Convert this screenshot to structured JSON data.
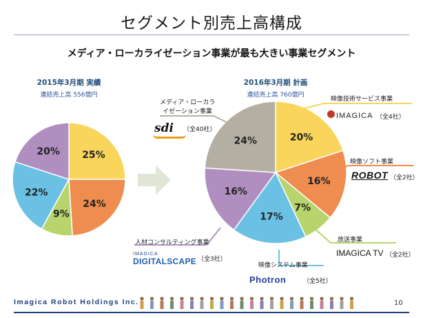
{
  "title": "セグメント別売上高構成",
  "subtitle": "メディア・ローカライゼーション事業が最も大きい事業セグメント",
  "chart_data": [
    {
      "type": "pie",
      "title": "2015年3月期 実績",
      "subtitle": "連結売上高 556億円",
      "slices": [
        {
          "label": "25%",
          "value": 25,
          "color": "#f9d55b"
        },
        {
          "label": "24%",
          "value": 24,
          "color": "#ef8c4f"
        },
        {
          "label": "9%",
          "value": 9,
          "color": "#b7d56c"
        },
        {
          "label": "22%",
          "value": 22,
          "color": "#6ac1e3"
        },
        {
          "label": "20%",
          "value": 20,
          "color": "#b08fc0"
        }
      ]
    },
    {
      "type": "pie",
      "title": "2016年3月期 計画",
      "subtitle": "連結売上高 760億円",
      "slices": [
        {
          "label": "20%",
          "value": 20,
          "color": "#f9d55b"
        },
        {
          "label": "16%",
          "value": 16,
          "color": "#ef8c4f"
        },
        {
          "label": "7%",
          "value": 7,
          "color": "#b7d56c"
        },
        {
          "label": "17%",
          "value": 17,
          "color": "#6ac1e3"
        },
        {
          "label": "16%",
          "value": 16,
          "color": "#b08fc0"
        },
        {
          "label": "24%",
          "value": 24,
          "color": "#b3b0a3"
        }
      ]
    }
  ],
  "segments": {
    "eizo_gijutsu": {
      "label": "映像技術サービス事業",
      "count": "（全4社）",
      "logo": "IMAGICA"
    },
    "eizo_soft": {
      "label": "映像ソフト事業",
      "count": "（全2社）",
      "logo": "ROBOT"
    },
    "hoso": {
      "label": "放送事業",
      "count": "（全2社）",
      "logo": "IMAGICA TV"
    },
    "eizo_system": {
      "label": "映像システム事業",
      "count": "（全5社）",
      "logo": "Photron"
    },
    "jinzai": {
      "label": "人材コンサルティング事業",
      "count": "（全3社）",
      "logo_top": "IMAGICA",
      "logo": "DIGITALSCAPE"
    },
    "media": {
      "label_line1": "メディア・ローカラ",
      "label_line2": "イゼーション事業",
      "count": "（全40社）",
      "logo": "sdi"
    }
  },
  "footer": {
    "company": "Imagica Robot Holdings Inc.",
    "page": "10"
  }
}
